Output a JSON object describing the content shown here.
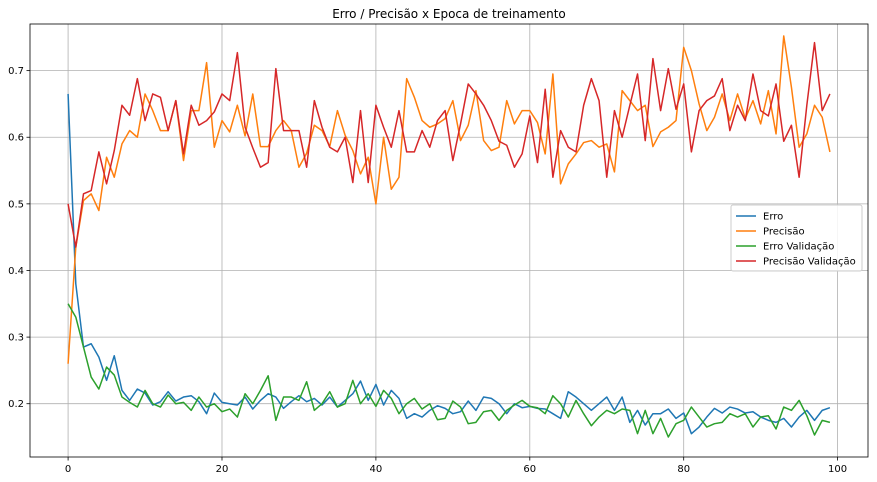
{
  "chart_data": {
    "type": "line",
    "title": "Erro / Precisão x Epoca de treinamento",
    "xlabel": "",
    "ylabel": "",
    "xlim": [
      -4.95,
      103.95
    ],
    "ylim": [
      0.12,
      0.77
    ],
    "xticks": [
      0,
      20,
      40,
      60,
      80,
      100
    ],
    "yticks": [
      0.2,
      0.3,
      0.4,
      0.5,
      0.6,
      0.7
    ],
    "ytick_labels": [
      "0.2",
      "0.3",
      "0.4",
      "0.5",
      "0.6",
      "0.7"
    ],
    "grid": true,
    "legend_position": "center-right",
    "series": [
      {
        "name": "Erro",
        "color": "#1f77b4",
        "values": [
          0.665,
          0.38,
          0.285,
          0.29,
          0.27,
          0.235,
          0.272,
          0.22,
          0.205,
          0.222,
          0.216,
          0.198,
          0.203,
          0.218,
          0.204,
          0.21,
          0.212,
          0.203,
          0.185,
          0.216,
          0.202,
          0.2,
          0.198,
          0.21,
          0.192,
          0.205,
          0.215,
          0.21,
          0.193,
          0.203,
          0.212,
          0.203,
          0.208,
          0.198,
          0.21,
          0.195,
          0.205,
          0.215,
          0.234,
          0.205,
          0.229,
          0.198,
          0.22,
          0.208,
          0.178,
          0.185,
          0.18,
          0.19,
          0.197,
          0.193,
          0.185,
          0.188,
          0.204,
          0.19,
          0.21,
          0.208,
          0.2,
          0.185,
          0.2,
          0.194,
          0.196,
          0.193,
          0.192,
          0.185,
          0.178,
          0.218,
          0.21,
          0.2,
          0.19,
          0.2,
          0.21,
          0.19,
          0.21,
          0.172,
          0.19,
          0.168,
          0.185,
          0.185,
          0.192,
          0.178,
          0.186,
          0.155,
          0.165,
          0.18,
          0.193,
          0.186,
          0.195,
          0.192,
          0.186,
          0.188,
          0.18,
          0.175,
          0.172,
          0.178,
          0.165,
          0.18,
          0.19,
          0.175,
          0.19,
          0.194
        ]
      },
      {
        "name": "Precisão",
        "color": "#ff7f0e",
        "values": [
          0.26,
          0.435,
          0.505,
          0.515,
          0.49,
          0.57,
          0.54,
          0.59,
          0.61,
          0.6,
          0.665,
          0.64,
          0.61,
          0.61,
          0.655,
          0.565,
          0.64,
          0.64,
          0.712,
          0.585,
          0.625,
          0.608,
          0.648,
          0.602,
          0.665,
          0.586,
          0.586,
          0.61,
          0.625,
          0.61,
          0.555,
          0.576,
          0.618,
          0.61,
          0.586,
          0.64,
          0.603,
          0.58,
          0.545,
          0.57,
          0.5,
          0.6,
          0.522,
          0.54,
          0.688,
          0.66,
          0.625,
          0.615,
          0.62,
          0.628,
          0.655,
          0.595,
          0.618,
          0.67,
          0.595,
          0.58,
          0.585,
          0.655,
          0.62,
          0.64,
          0.64,
          0.622,
          0.575,
          0.695,
          0.53,
          0.56,
          0.575,
          0.592,
          0.595,
          0.585,
          0.59,
          0.548,
          0.67,
          0.655,
          0.64,
          0.648,
          0.586,
          0.608,
          0.615,
          0.625,
          0.735,
          0.7,
          0.65,
          0.61,
          0.63,
          0.665,
          0.625,
          0.665,
          0.628,
          0.655,
          0.62,
          0.67,
          0.605,
          0.752,
          0.675,
          0.585,
          0.605,
          0.648,
          0.63,
          0.578
        ]
      },
      {
        "name": "Erro Validação",
        "color": "#2ca02c",
        "values": [
          0.35,
          0.33,
          0.285,
          0.24,
          0.222,
          0.255,
          0.243,
          0.21,
          0.202,
          0.195,
          0.22,
          0.2,
          0.195,
          0.213,
          0.2,
          0.202,
          0.19,
          0.21,
          0.195,
          0.2,
          0.188,
          0.192,
          0.18,
          0.215,
          0.2,
          0.22,
          0.242,
          0.175,
          0.21,
          0.21,
          0.205,
          0.233,
          0.19,
          0.2,
          0.218,
          0.195,
          0.2,
          0.235,
          0.2,
          0.215,
          0.196,
          0.22,
          0.208,
          0.185,
          0.2,
          0.208,
          0.192,
          0.2,
          0.176,
          0.178,
          0.204,
          0.195,
          0.17,
          0.172,
          0.188,
          0.19,
          0.175,
          0.19,
          0.198,
          0.205,
          0.196,
          0.194,
          0.185,
          0.212,
          0.2,
          0.18,
          0.205,
          0.185,
          0.167,
          0.18,
          0.19,
          0.185,
          0.192,
          0.19,
          0.155,
          0.19,
          0.155,
          0.178,
          0.15,
          0.17,
          0.175,
          0.195,
          0.18,
          0.165,
          0.17,
          0.172,
          0.185,
          0.18,
          0.185,
          0.165,
          0.18,
          0.182,
          0.162,
          0.195,
          0.19,
          0.205,
          0.182,
          0.153,
          0.175,
          0.172
        ]
      },
      {
        "name": "Precisão Validação",
        "color": "#d62728",
        "values": [
          0.5,
          0.435,
          0.515,
          0.52,
          0.578,
          0.53,
          0.58,
          0.648,
          0.633,
          0.688,
          0.625,
          0.665,
          0.66,
          0.61,
          0.655,
          0.575,
          0.648,
          0.618,
          0.625,
          0.638,
          0.665,
          0.655,
          0.727,
          0.615,
          0.584,
          0.555,
          0.562,
          0.703,
          0.61,
          0.61,
          0.61,
          0.555,
          0.655,
          0.615,
          0.585,
          0.578,
          0.6,
          0.532,
          0.64,
          0.532,
          0.648,
          0.615,
          0.585,
          0.64,
          0.578,
          0.578,
          0.61,
          0.585,
          0.625,
          0.64,
          0.565,
          0.62,
          0.68,
          0.665,
          0.648,
          0.625,
          0.594,
          0.588,
          0.555,
          0.575,
          0.632,
          0.562,
          0.672,
          0.54,
          0.61,
          0.585,
          0.578,
          0.648,
          0.688,
          0.655,
          0.54,
          0.64,
          0.6,
          0.648,
          0.695,
          0.595,
          0.718,
          0.64,
          0.703,
          0.642,
          0.68,
          0.578,
          0.64,
          0.655,
          0.662,
          0.688,
          0.61,
          0.648,
          0.625,
          0.695,
          0.64,
          0.632,
          0.68,
          0.594,
          0.618,
          0.54,
          0.648,
          0.742,
          0.64,
          0.665
        ]
      }
    ]
  }
}
